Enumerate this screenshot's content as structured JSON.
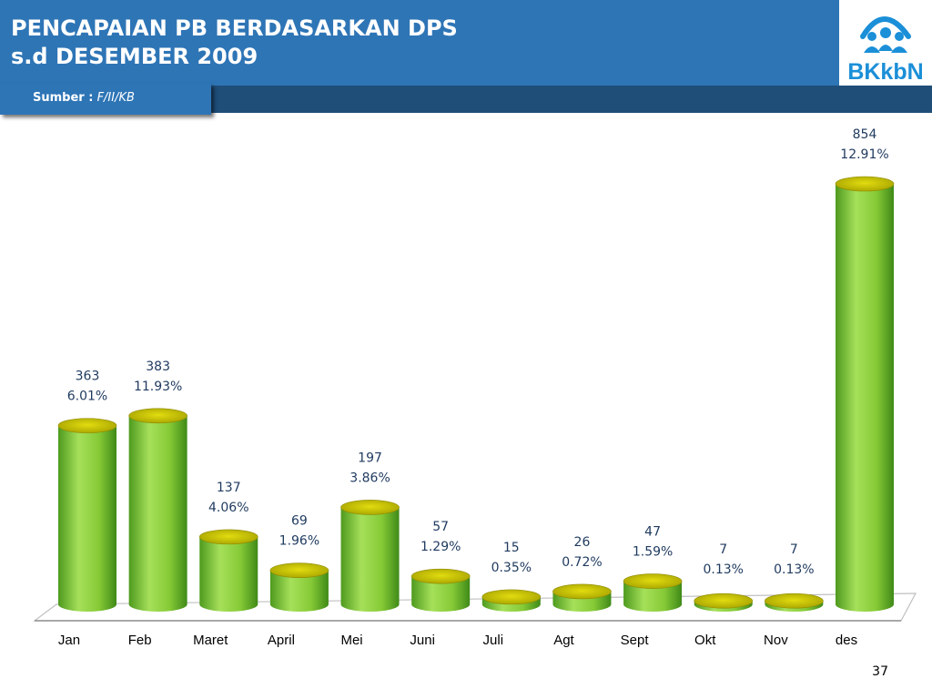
{
  "header": {
    "title_line1": "PENCAPAIAN PB BERDASARKAN DPS",
    "title_line2": "s.d  DESEMBER  2009"
  },
  "source": {
    "label": "Sumber :",
    "value": "F/II/KB"
  },
  "logo": {
    "text": "BKkbN",
    "icon": "family-figures-icon"
  },
  "page_number": "37",
  "colors": {
    "header_blue": "#2e75b6",
    "band_navy": "#1f4e79",
    "cylinder_green": "#8ed43a",
    "cylinder_top": "#c8c400",
    "label_blue": "#1f3a5f"
  },
  "chart_data": {
    "type": "bar",
    "style": "3d-cylinder",
    "title": "",
    "xlabel": "",
    "ylabel": "",
    "categories": [
      "Jan",
      "Feb",
      "Maret",
      "April",
      "Mei",
      "Juni",
      "Juli",
      "Agt",
      "Sept",
      "Okt",
      "Nov",
      "des"
    ],
    "values": [
      363,
      383,
      137,
      69,
      197,
      57,
      15,
      26,
      47,
      7,
      7,
      854
    ],
    "value_labels": [
      "363",
      "383",
      "137",
      "69",
      "197",
      "57",
      "15",
      "26",
      "47",
      "7",
      "7",
      "854"
    ],
    "percent_labels": [
      "6.01%",
      "11.93%",
      "4.06%",
      "1.96%",
      "3.86%",
      "1.29%",
      "0.35%",
      "0.72%",
      "1.59%",
      "0.13%",
      "0.13%",
      "12.91%"
    ],
    "ylim": [
      0,
      854
    ],
    "grid": false,
    "legend": "none"
  }
}
